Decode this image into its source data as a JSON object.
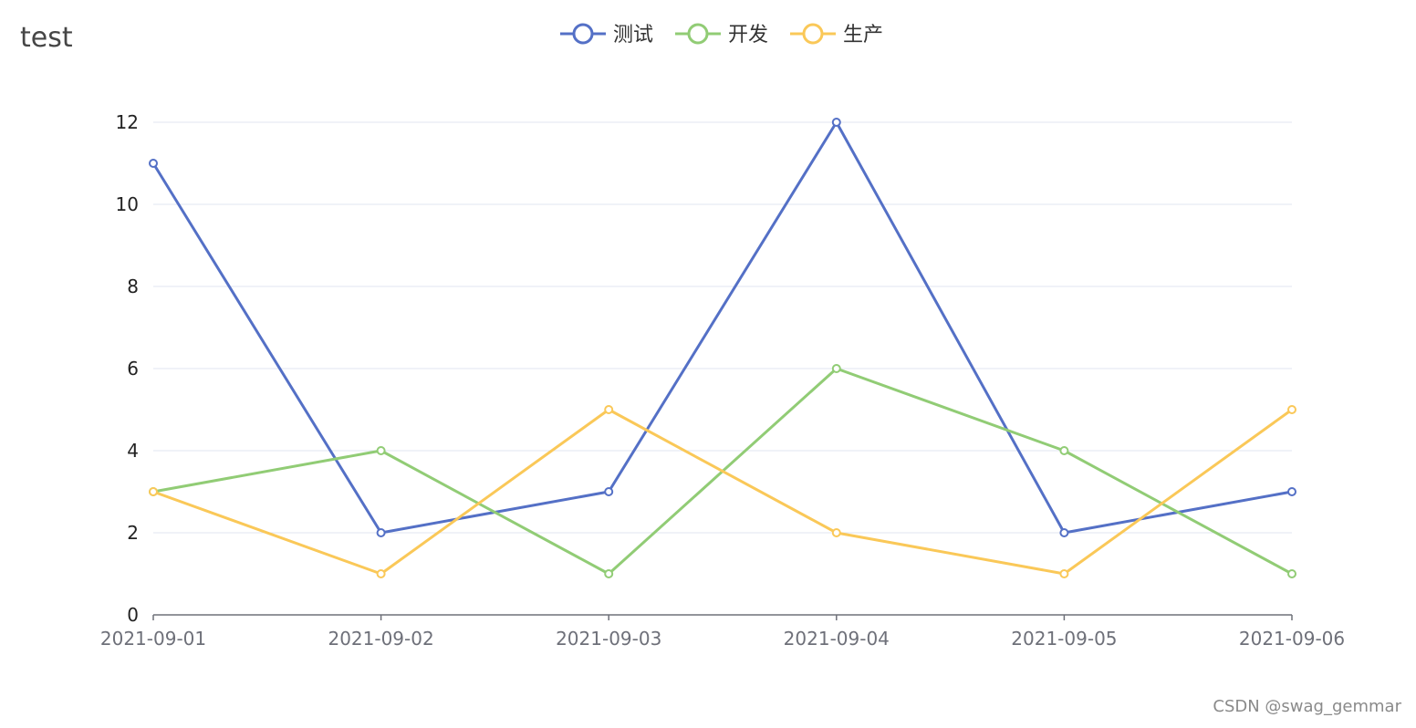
{
  "watermark": "CSDN @swag_gemmar",
  "colors": {
    "gridline": "#e0e6f1",
    "axis": "#6e7079",
    "tick_label": "#222222",
    "x_tick_label": "#6e7079",
    "title": "#464646",
    "legend_text": "#333333",
    "watermark": "#8a8a8a"
  },
  "chart_data": {
    "type": "line",
    "title": "test",
    "xlabel": "",
    "ylabel": "",
    "categories": [
      "2021-09-01",
      "2021-09-02",
      "2021-09-03",
      "2021-09-04",
      "2021-09-05",
      "2021-09-06"
    ],
    "ylim": [
      0,
      12
    ],
    "yticks": [
      0,
      2,
      4,
      6,
      8,
      10,
      12
    ],
    "grid": true,
    "legend_position": "top-center",
    "series": [
      {
        "name": "测试",
        "color": "#5470c6",
        "values": [
          11,
          2,
          3,
          12,
          2,
          3
        ]
      },
      {
        "name": "开发",
        "color": "#91cc75",
        "values": [
          3,
          4,
          1,
          6,
          4,
          1
        ]
      },
      {
        "name": "生产",
        "color": "#fac858",
        "values": [
          3,
          1,
          5,
          2,
          1,
          5
        ]
      }
    ]
  }
}
